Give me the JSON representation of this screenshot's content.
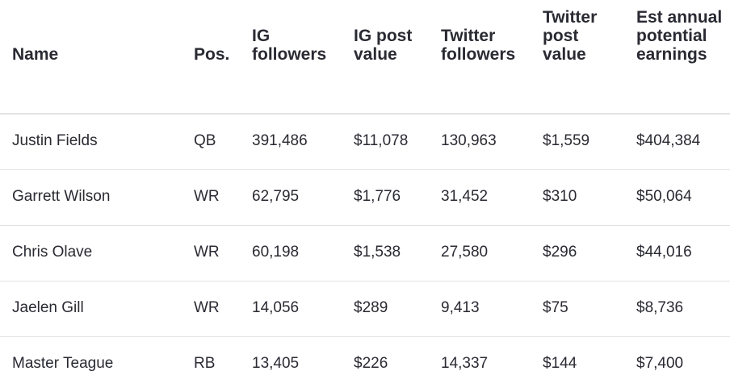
{
  "table": {
    "headers": [
      [
        "Name"
      ],
      [
        "Pos."
      ],
      [
        "IG",
        "followers"
      ],
      [
        "IG post",
        "value"
      ],
      [
        "Twitter",
        "followers"
      ],
      [
        "Twitter",
        "post",
        "value"
      ],
      [
        "Est annual",
        "potential",
        "earnings"
      ]
    ],
    "rows": [
      [
        "Justin Fields",
        "QB",
        "391,486",
        "$11,078",
        "130,963",
        "$1,559",
        "$404,384"
      ],
      [
        "Garrett Wilson",
        "WR",
        "62,795",
        "$1,776",
        "31,452",
        "$310",
        "$50,064"
      ],
      [
        "Chris Olave",
        "WR",
        "60,198",
        "$1,538",
        "27,580",
        "$296",
        "$44,016"
      ],
      [
        "Jaelen Gill",
        "WR",
        "14,056",
        "$289",
        "9,413",
        "$75",
        "$8,736"
      ],
      [
        "Master Teague",
        "RB",
        "13,405",
        "$226",
        "14,337",
        "$144",
        "$7,400"
      ]
    ]
  }
}
